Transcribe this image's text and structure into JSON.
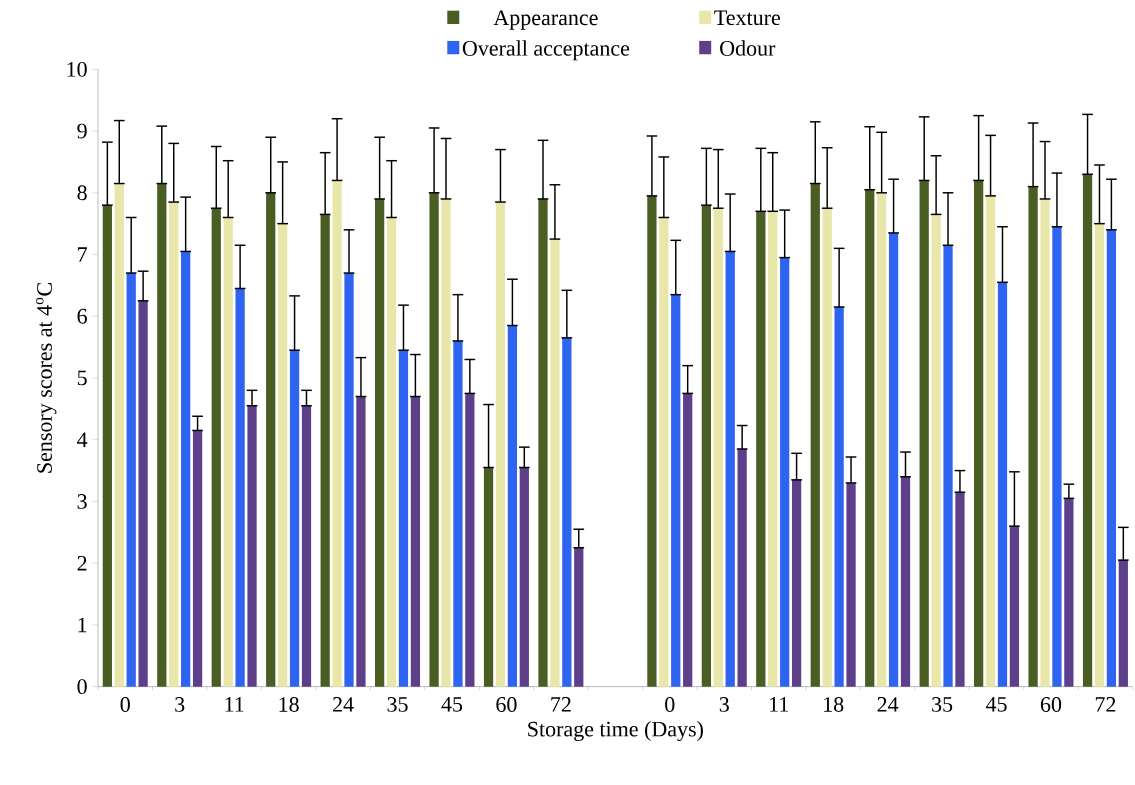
{
  "chart_data": {
    "type": "bar",
    "xlabel": "Storage time (Days)",
    "ylabel": "Sensory scores at 4$^{o}$C",
    "categories": [
      "0",
      "3",
      "11",
      "18",
      "24",
      "35",
      "45",
      "60",
      "72",
      null,
      "0",
      "3",
      "11",
      "18",
      "24",
      "35",
      "45",
      "60",
      "72"
    ],
    "series": [
      {
        "name": "Appearance",
        "color": "#4a5e23",
        "values": [
          7.8,
          8.15,
          7.75,
          8.0,
          7.65,
          7.9,
          8.0,
          3.55,
          7.9,
          null,
          7.95,
          7.8,
          7.7,
          8.15,
          8.05,
          8.2,
          8.2,
          8.1,
          8.3
        ],
        "errors": [
          [
            7.8,
            8.82
          ],
          [
            8.15,
            9.08
          ],
          [
            7.75,
            8.75
          ],
          [
            8.0,
            8.9
          ],
          [
            7.65,
            8.65
          ],
          [
            7.9,
            8.9
          ],
          [
            8.0,
            9.05
          ],
          [
            3.55,
            4.57
          ],
          [
            7.9,
            8.85
          ],
          null,
          [
            7.95,
            8.92
          ],
          [
            7.8,
            8.72
          ],
          [
            7.7,
            8.72
          ],
          [
            8.15,
            9.15
          ],
          [
            8.05,
            9.07
          ],
          [
            8.2,
            9.23
          ],
          [
            8.2,
            9.25
          ],
          [
            8.1,
            9.13
          ],
          [
            8.3,
            9.27
          ]
        ]
      },
      {
        "name": "Texture",
        "color": "#e8e6a8",
        "values": [
          8.15,
          7.85,
          7.6,
          7.5,
          8.2,
          7.6,
          7.9,
          7.85,
          7.25,
          null,
          7.6,
          7.75,
          7.7,
          7.75,
          8.0,
          7.65,
          7.95,
          7.9,
          7.5
        ],
        "errors": [
          [
            8.15,
            9.17
          ],
          [
            7.85,
            8.8
          ],
          [
            7.6,
            8.52
          ],
          [
            7.5,
            8.5
          ],
          [
            8.2,
            9.2
          ],
          [
            7.6,
            8.52
          ],
          [
            7.9,
            8.88
          ],
          [
            7.85,
            8.7
          ],
          [
            7.25,
            8.13
          ],
          null,
          [
            7.6,
            8.58
          ],
          [
            7.75,
            8.7
          ],
          [
            7.7,
            8.65
          ],
          [
            7.75,
            8.73
          ],
          [
            8.0,
            8.98
          ],
          [
            7.65,
            8.6
          ],
          [
            7.95,
            8.93
          ],
          [
            7.9,
            8.83
          ],
          [
            7.5,
            8.45
          ]
        ]
      },
      {
        "name": "Overall acceptance",
        "color": "#2e64f0",
        "values": [
          6.7,
          7.05,
          6.45,
          5.45,
          6.7,
          5.45,
          5.6,
          5.85,
          5.65,
          null,
          6.35,
          7.05,
          6.95,
          6.15,
          7.35,
          7.15,
          6.55,
          7.45,
          7.4
        ],
        "errors": [
          [
            6.7,
            7.6
          ],
          [
            7.05,
            7.93
          ],
          [
            6.45,
            7.15
          ],
          [
            5.45,
            6.33
          ],
          [
            6.7,
            7.4
          ],
          [
            5.45,
            6.18
          ],
          [
            5.6,
            6.35
          ],
          [
            5.85,
            6.6
          ],
          [
            5.65,
            6.42
          ],
          null,
          [
            6.35,
            7.23
          ],
          [
            7.05,
            7.98
          ],
          [
            6.95,
            7.72
          ],
          [
            6.15,
            7.1
          ],
          [
            7.35,
            8.22
          ],
          [
            7.15,
            8.0
          ],
          [
            6.55,
            7.45
          ],
          [
            7.45,
            8.32
          ],
          [
            7.4,
            8.22
          ]
        ]
      },
      {
        "name": "Odour",
        "color": "#5e3f8a",
        "values": [
          6.25,
          4.15,
          4.55,
          4.55,
          4.7,
          4.7,
          4.75,
          3.55,
          2.25,
          null,
          4.75,
          3.85,
          3.35,
          3.3,
          3.4,
          3.15,
          2.6,
          3.05,
          2.05
        ],
        "errors": [
          [
            6.25,
            6.73
          ],
          [
            4.15,
            4.38
          ],
          [
            4.55,
            4.8
          ],
          [
            4.55,
            4.8
          ],
          [
            4.7,
            5.33
          ],
          [
            4.7,
            5.38
          ],
          [
            4.75,
            5.3
          ],
          [
            3.55,
            3.88
          ],
          [
            2.25,
            2.55
          ],
          null,
          [
            4.75,
            5.2
          ],
          [
            3.85,
            4.23
          ],
          [
            3.35,
            3.78
          ],
          [
            3.3,
            3.72
          ],
          [
            3.4,
            3.8
          ],
          [
            3.15,
            3.5
          ],
          [
            2.6,
            3.48
          ],
          [
            3.05,
            3.28
          ],
          [
            2.05,
            2.58
          ]
        ]
      }
    ],
    "ylim": [
      0,
      10
    ],
    "yticks": [
      0,
      1,
      2,
      3,
      4,
      5,
      6,
      7,
      8,
      9,
      10
    ],
    "grid": false,
    "legend": "top"
  }
}
